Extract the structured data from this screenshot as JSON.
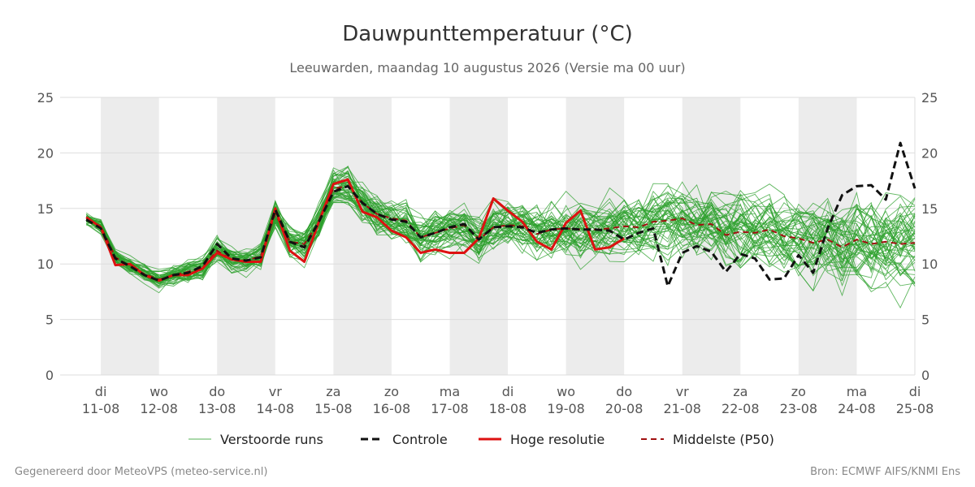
{
  "chart_data": {
    "type": "line",
    "title": "Dauwpunttemperatuur (°C)",
    "subtitle": "Leeuwarden, maandag 10 augustus 2026 (Versie ma 00 uur)",
    "ylim": [
      0,
      25
    ],
    "yticks": [
      0,
      5,
      10,
      15,
      20,
      25
    ],
    "xlim": [
      10.3,
      25.0
    ],
    "xticks": [
      {
        "x": 11,
        "day": "di",
        "date": "11-08"
      },
      {
        "x": 12,
        "day": "wo",
        "date": "12-08"
      },
      {
        "x": 13,
        "day": "do",
        "date": "13-08"
      },
      {
        "x": 14,
        "day": "vr",
        "date": "14-08"
      },
      {
        "x": 15,
        "day": "za",
        "date": "15-08"
      },
      {
        "x": 16,
        "day": "zo",
        "date": "16-08"
      },
      {
        "x": 17,
        "day": "ma",
        "date": "17-08"
      },
      {
        "x": 18,
        "day": "di",
        "date": "18-08"
      },
      {
        "x": 19,
        "day": "wo",
        "date": "19-08"
      },
      {
        "x": 20,
        "day": "do",
        "date": "20-08"
      },
      {
        "x": 21,
        "day": "vr",
        "date": "21-08"
      },
      {
        "x": 22,
        "day": "za",
        "date": "22-08"
      },
      {
        "x": 23,
        "day": "zo",
        "date": "23-08"
      },
      {
        "x": 24,
        "day": "ma",
        "date": "24-08"
      },
      {
        "x": 25,
        "day": "di",
        "date": "25-08"
      }
    ],
    "shaded_days": [
      11,
      13,
      15,
      17,
      19,
      21,
      23
    ],
    "grid": true,
    "legend_position": "bottom",
    "colors": {
      "ensemble": "#2ca02c",
      "controle": "#111111",
      "hoge_resolutie": "#dd1111",
      "p50": "#a01010",
      "shade": "#ececec",
      "grid": "#dddddd"
    },
    "series": [
      {
        "name": "Verstoorde runs",
        "style": "ensemble",
        "note_members_approximate": true
      },
      {
        "name": "Controle",
        "style": "dashed",
        "x": [
          10.75,
          11.0,
          11.25,
          11.5,
          11.75,
          12.0,
          12.25,
          12.5,
          12.75,
          13.0,
          13.25,
          13.5,
          13.75,
          14.0,
          14.25,
          14.5,
          14.75,
          15.0,
          15.25,
          15.5,
          15.75,
          16.0,
          16.25,
          16.5,
          16.75,
          17.0,
          17.25,
          17.5,
          17.75,
          18.0,
          18.25,
          18.5,
          18.75,
          19.0,
          19.25,
          19.5,
          19.75,
          20.0,
          20.25,
          20.5,
          20.75,
          21.0,
          21.25,
          21.5,
          21.75,
          22.0,
          22.25,
          22.5,
          22.75,
          23.0,
          23.25,
          23.5,
          23.75,
          24.0,
          24.25,
          24.5,
          24.75,
          25.0
        ],
        "values": [
          14.0,
          13.2,
          10.5,
          9.8,
          9.0,
          8.5,
          9.0,
          9.2,
          9.8,
          11.8,
          10.5,
          10.3,
          10.6,
          14.9,
          12.0,
          11.5,
          13.8,
          16.5,
          17.0,
          15.5,
          14.5,
          14.0,
          13.8,
          12.4,
          12.8,
          13.3,
          13.6,
          12.2,
          13.3,
          13.4,
          13.3,
          12.8,
          13.1,
          13.2,
          13.1,
          13.1,
          13.0,
          12.2,
          12.8,
          13.2,
          8.0,
          11.0,
          11.6,
          11.1,
          9.3,
          10.9,
          10.5,
          8.6,
          8.7,
          10.8,
          9.2,
          13.2,
          16.2,
          17.0,
          17.1,
          15.8,
          20.9,
          16.8
        ]
      },
      {
        "name": "Hoge resolutie",
        "style": "solid",
        "x": [
          10.75,
          11.0,
          11.25,
          11.5,
          11.75,
          12.0,
          12.25,
          12.5,
          12.75,
          13.0,
          13.25,
          13.5,
          13.75,
          14.0,
          14.25,
          14.5,
          14.75,
          15.0,
          15.25,
          15.5,
          15.75,
          16.0,
          16.25,
          16.5,
          16.75,
          17.0,
          17.25,
          17.5,
          17.75,
          18.0,
          18.25,
          18.5,
          18.75,
          19.0,
          19.25,
          19.5,
          19.75,
          20.0
        ],
        "values": [
          14.2,
          13.3,
          9.9,
          10.0,
          9.0,
          8.5,
          9.0,
          9.0,
          9.6,
          11.0,
          10.4,
          10.2,
          10.2,
          15.0,
          11.2,
          10.2,
          13.8,
          17.2,
          17.6,
          14.7,
          14.2,
          13.0,
          12.4,
          11.0,
          11.3,
          11.0,
          11.0,
          12.3,
          15.9,
          14.8,
          13.8,
          12.0,
          11.3,
          13.7,
          14.8,
          11.3,
          11.5,
          12.3
        ]
      },
      {
        "name": "Middelste (P50)",
        "style": "dashed-thin",
        "x": [
          10.75,
          11.0,
          11.25,
          11.5,
          11.75,
          12.0,
          12.25,
          12.5,
          12.75,
          13.0,
          13.25,
          13.5,
          13.75,
          14.0,
          14.25,
          14.5,
          14.75,
          15.0,
          15.25,
          15.5,
          15.75,
          16.0,
          16.25,
          16.5,
          16.75,
          17.0,
          17.25,
          17.5,
          17.75,
          18.0,
          18.25,
          18.5,
          18.75,
          19.0,
          19.25,
          19.5,
          19.75,
          20.0,
          20.25,
          20.5,
          20.75,
          21.0,
          21.25,
          21.5,
          21.75,
          22.0,
          22.25,
          22.5,
          22.75,
          23.0,
          23.25,
          23.5,
          23.75,
          24.0,
          24.25,
          24.5,
          24.75,
          25.0
        ],
        "values": [
          14.0,
          13.4,
          10.6,
          9.8,
          9.1,
          8.6,
          9.0,
          9.3,
          9.7,
          11.2,
          10.4,
          10.3,
          10.7,
          14.5,
          12.0,
          11.8,
          13.8,
          16.8,
          17.0,
          15.5,
          14.5,
          14.1,
          13.9,
          12.4,
          12.8,
          13.2,
          13.5,
          12.2,
          13.3,
          13.5,
          13.4,
          12.7,
          13.1,
          13.2,
          13.1,
          13.1,
          13.2,
          13.4,
          13.3,
          13.8,
          13.9,
          14.1,
          13.5,
          13.6,
          12.6,
          12.9,
          12.8,
          13.1,
          12.5,
          12.3,
          11.9,
          12.2,
          11.5,
          12.2,
          11.8,
          12.0,
          11.8,
          11.9
        ]
      }
    ]
  },
  "legend": {
    "ensemble": "Verstoorde runs",
    "controle": "Controle",
    "hoge_resolutie": "Hoge resolutie",
    "p50": "Middelste (P50)"
  },
  "footer": {
    "left": "Gegenereerd door MeteoVPS (meteo-service.nl)",
    "right": "Bron: ECMWF AIFS/KNMI Ens"
  }
}
